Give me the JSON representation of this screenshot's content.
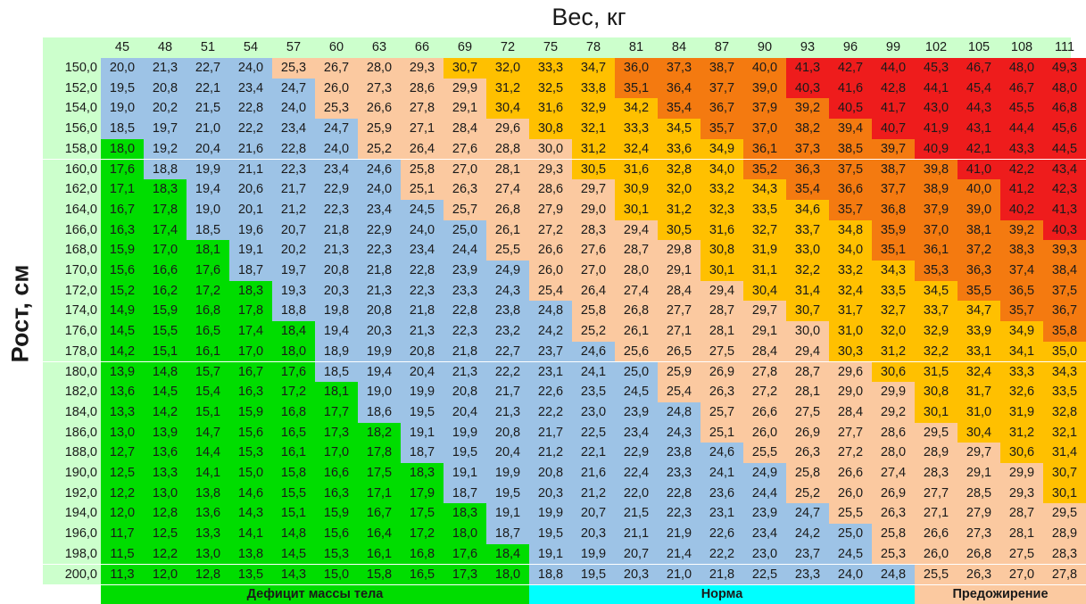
{
  "title": "Вес, кг",
  "row_axis_label": "Рост, см",
  "weights": [
    45,
    48,
    51,
    54,
    57,
    60,
    63,
    66,
    69,
    72,
    75,
    78,
    81,
    84,
    87,
    90,
    93,
    96,
    99,
    102,
    105,
    108,
    111
  ],
  "rows": [
    {
      "height": "150,0",
      "cells": [
        "20,0",
        "21,3",
        "22,7",
        "24,0",
        "25,3",
        "26,7",
        "28,0",
        "29,3",
        "30,7",
        "32,0",
        "33,3",
        "34,7",
        "36,0",
        "37,3",
        "38,7",
        "40,0",
        "41,3",
        "42,7",
        "44,0",
        "45,3",
        "46,7",
        "48,0",
        "49,3"
      ]
    },
    {
      "height": "152,0",
      "cells": [
        "19,5",
        "20,8",
        "22,1",
        "23,4",
        "24,7",
        "26,0",
        "27,3",
        "28,6",
        "29,9",
        "31,2",
        "32,5",
        "33,8",
        "35,1",
        "36,4",
        "37,7",
        "39,0",
        "40,3",
        "41,6",
        "42,8",
        "44,1",
        "45,4",
        "46,7",
        "48,0"
      ]
    },
    {
      "height": "154,0",
      "cells": [
        "19,0",
        "20,2",
        "21,5",
        "22,8",
        "24,0",
        "25,3",
        "26,6",
        "27,8",
        "29,1",
        "30,4",
        "31,6",
        "32,9",
        "34,2",
        "35,4",
        "36,7",
        "37,9",
        "39,2",
        "40,5",
        "41,7",
        "43,0",
        "44,3",
        "45,5",
        "46,8"
      ]
    },
    {
      "height": "156,0",
      "cells": [
        "18,5",
        "19,7",
        "21,0",
        "22,2",
        "23,4",
        "24,7",
        "25,9",
        "27,1",
        "28,4",
        "29,6",
        "30,8",
        "32,1",
        "33,3",
        "34,5",
        "35,7",
        "37,0",
        "38,2",
        "39,4",
        "40,7",
        "41,9",
        "43,1",
        "44,4",
        "45,6"
      ]
    },
    {
      "height": "158,0",
      "cells": [
        "18,0",
        "19,2",
        "20,4",
        "21,6",
        "22,8",
        "24,0",
        "25,2",
        "26,4",
        "27,6",
        "28,8",
        "30,0",
        "31,2",
        "32,4",
        "33,6",
        "34,9",
        "36,1",
        "37,3",
        "38,5",
        "39,7",
        "40,9",
        "42,1",
        "43,3",
        "44,5"
      ]
    },
    {
      "height": "160,0",
      "cells": [
        "17,6",
        "18,8",
        "19,9",
        "21,1",
        "22,3",
        "23,4",
        "24,6",
        "25,8",
        "27,0",
        "28,1",
        "29,3",
        "30,5",
        "31,6",
        "32,8",
        "34,0",
        "35,2",
        "36,3",
        "37,5",
        "38,7",
        "39,8",
        "41,0",
        "42,2",
        "43,4"
      ]
    },
    {
      "height": "162,0",
      "cells": [
        "17,1",
        "18,3",
        "19,4",
        "20,6",
        "21,7",
        "22,9",
        "24,0",
        "25,1",
        "26,3",
        "27,4",
        "28,6",
        "29,7",
        "30,9",
        "32,0",
        "33,2",
        "34,3",
        "35,4",
        "36,6",
        "37,7",
        "38,9",
        "40,0",
        "41,2",
        "42,3"
      ]
    },
    {
      "height": "164,0",
      "cells": [
        "16,7",
        "17,8",
        "19,0",
        "20,1",
        "21,2",
        "22,3",
        "23,4",
        "24,5",
        "25,7",
        "26,8",
        "27,9",
        "29,0",
        "30,1",
        "31,2",
        "32,3",
        "33,5",
        "34,6",
        "35,7",
        "36,8",
        "37,9",
        "39,0",
        "40,2",
        "41,3"
      ]
    },
    {
      "height": "166,0",
      "cells": [
        "16,3",
        "17,4",
        "18,5",
        "19,6",
        "20,7",
        "21,8",
        "22,9",
        "24,0",
        "25,0",
        "26,1",
        "27,2",
        "28,3",
        "29,4",
        "30,5",
        "31,6",
        "32,7",
        "33,7",
        "34,8",
        "35,9",
        "37,0",
        "38,1",
        "39,2",
        "40,3"
      ]
    },
    {
      "height": "168,0",
      "cells": [
        "15,9",
        "17,0",
        "18,1",
        "19,1",
        "20,2",
        "21,3",
        "22,3",
        "23,4",
        "24,4",
        "25,5",
        "26,6",
        "27,6",
        "28,7",
        "29,8",
        "30,8",
        "31,9",
        "33,0",
        "34,0",
        "35,1",
        "36,1",
        "37,2",
        "38,3",
        "39,3"
      ]
    },
    {
      "height": "170,0",
      "cells": [
        "15,6",
        "16,6",
        "17,6",
        "18,7",
        "19,7",
        "20,8",
        "21,8",
        "22,8",
        "23,9",
        "24,9",
        "26,0",
        "27,0",
        "28,0",
        "29,1",
        "30,1",
        "31,1",
        "32,2",
        "33,2",
        "34,3",
        "35,3",
        "36,3",
        "37,4",
        "38,4"
      ]
    },
    {
      "height": "172,0",
      "cells": [
        "15,2",
        "16,2",
        "17,2",
        "18,3",
        "19,3",
        "20,3",
        "21,3",
        "22,3",
        "23,3",
        "24,3",
        "25,4",
        "26,4",
        "27,4",
        "28,4",
        "29,4",
        "30,4",
        "31,4",
        "32,4",
        "33,5",
        "34,5",
        "35,5",
        "36,5",
        "37,5"
      ]
    },
    {
      "height": "174,0",
      "cells": [
        "14,9",
        "15,9",
        "16,8",
        "17,8",
        "18,8",
        "19,8",
        "20,8",
        "21,8",
        "22,8",
        "23,8",
        "24,8",
        "25,8",
        "26,8",
        "27,7",
        "28,7",
        "29,7",
        "30,7",
        "31,7",
        "32,7",
        "33,7",
        "34,7",
        "35,7",
        "36,7"
      ]
    },
    {
      "height": "176,0",
      "cells": [
        "14,5",
        "15,5",
        "16,5",
        "17,4",
        "18,4",
        "19,4",
        "20,3",
        "21,3",
        "22,3",
        "23,2",
        "24,2",
        "25,2",
        "26,1",
        "27,1",
        "28,1",
        "29,1",
        "30,0",
        "31,0",
        "32,0",
        "32,9",
        "33,9",
        "34,9",
        "35,8"
      ]
    },
    {
      "height": "178,0",
      "cells": [
        "14,2",
        "15,1",
        "16,1",
        "17,0",
        "18,0",
        "18,9",
        "19,9",
        "20,8",
        "21,8",
        "22,7",
        "23,7",
        "24,6",
        "25,6",
        "26,5",
        "27,5",
        "28,4",
        "29,4",
        "30,3",
        "31,2",
        "32,2",
        "33,1",
        "34,1",
        "35,0"
      ]
    },
    {
      "height": "180,0",
      "cells": [
        "13,9",
        "14,8",
        "15,7",
        "16,7",
        "17,6",
        "18,5",
        "19,4",
        "20,4",
        "21,3",
        "22,2",
        "23,1",
        "24,1",
        "25,0",
        "25,9",
        "26,9",
        "27,8",
        "28,7",
        "29,6",
        "30,6",
        "31,5",
        "32,4",
        "33,3",
        "34,3"
      ]
    },
    {
      "height": "182,0",
      "cells": [
        "13,6",
        "14,5",
        "15,4",
        "16,3",
        "17,2",
        "18,1",
        "19,0",
        "19,9",
        "20,8",
        "21,7",
        "22,6",
        "23,5",
        "24,5",
        "25,4",
        "26,3",
        "27,2",
        "28,1",
        "29,0",
        "29,9",
        "30,8",
        "31,7",
        "32,6",
        "33,5"
      ]
    },
    {
      "height": "184,0",
      "cells": [
        "13,3",
        "14,2",
        "15,1",
        "15,9",
        "16,8",
        "17,7",
        "18,6",
        "19,5",
        "20,4",
        "21,3",
        "22,2",
        "23,0",
        "23,9",
        "24,8",
        "25,7",
        "26,6",
        "27,5",
        "28,4",
        "29,2",
        "30,1",
        "31,0",
        "31,9",
        "32,8"
      ]
    },
    {
      "height": "186,0",
      "cells": [
        "13,0",
        "13,9",
        "14,7",
        "15,6",
        "16,5",
        "17,3",
        "18,2",
        "19,1",
        "19,9",
        "20,8",
        "21,7",
        "22,5",
        "23,4",
        "24,3",
        "25,1",
        "26,0",
        "26,9",
        "27,7",
        "28,6",
        "29,5",
        "30,4",
        "31,2",
        "32,1"
      ]
    },
    {
      "height": "188,0",
      "cells": [
        "12,7",
        "13,6",
        "14,4",
        "15,3",
        "16,1",
        "17,0",
        "17,8",
        "18,7",
        "19,5",
        "20,4",
        "21,2",
        "22,1",
        "22,9",
        "23,8",
        "24,6",
        "25,5",
        "26,3",
        "27,2",
        "28,0",
        "28,9",
        "29,7",
        "30,6",
        "31,4"
      ]
    },
    {
      "height": "190,0",
      "cells": [
        "12,5",
        "13,3",
        "14,1",
        "15,0",
        "15,8",
        "16,6",
        "17,5",
        "18,3",
        "19,1",
        "19,9",
        "20,8",
        "21,6",
        "22,4",
        "23,3",
        "24,1",
        "24,9",
        "25,8",
        "26,6",
        "27,4",
        "28,3",
        "29,1",
        "29,9",
        "30,7"
      ]
    },
    {
      "height": "192,0",
      "cells": [
        "12,2",
        "13,0",
        "13,8",
        "14,6",
        "15,5",
        "16,3",
        "17,1",
        "17,9",
        "18,7",
        "19,5",
        "20,3",
        "21,2",
        "22,0",
        "22,8",
        "23,6",
        "24,4",
        "25,2",
        "26,0",
        "26,9",
        "27,7",
        "28,5",
        "29,3",
        "30,1"
      ]
    },
    {
      "height": "194,0",
      "cells": [
        "12,0",
        "12,8",
        "13,6",
        "14,3",
        "15,1",
        "15,9",
        "16,7",
        "17,5",
        "18,3",
        "19,1",
        "19,9",
        "20,7",
        "21,5",
        "22,3",
        "23,1",
        "23,9",
        "24,7",
        "25,5",
        "26,3",
        "27,1",
        "27,9",
        "28,7",
        "29,5"
      ]
    },
    {
      "height": "196,0",
      "cells": [
        "11,7",
        "12,5",
        "13,3",
        "14,1",
        "14,8",
        "15,6",
        "16,4",
        "17,2",
        "18,0",
        "18,7",
        "19,5",
        "20,3",
        "21,1",
        "21,9",
        "22,6",
        "23,4",
        "24,2",
        "25,0",
        "25,8",
        "26,6",
        "27,3",
        "28,1",
        "28,9"
      ]
    },
    {
      "height": "198,0",
      "cells": [
        "11,5",
        "12,2",
        "13,0",
        "13,8",
        "14,5",
        "15,3",
        "16,1",
        "16,8",
        "17,6",
        "18,4",
        "19,1",
        "19,9",
        "20,7",
        "21,4",
        "22,2",
        "23,0",
        "23,7",
        "24,5",
        "25,3",
        "26,0",
        "26,8",
        "27,5",
        "28,3"
      ]
    },
    {
      "height": "200,0",
      "cells": [
        "11,3",
        "12,0",
        "12,8",
        "13,5",
        "14,3",
        "15,0",
        "15,8",
        "16,5",
        "17,3",
        "18,0",
        "18,8",
        "19,5",
        "20,3",
        "21,0",
        "21,8",
        "22,5",
        "23,3",
        "24,0",
        "24,8",
        "25,5",
        "26,3",
        "27,0",
        "27,8"
      ]
    }
  ],
  "legend": [
    {
      "label": "Дефицит массы тела",
      "color": "#00dd00"
    },
    {
      "label": "Норма",
      "color": "#00ffff"
    },
    {
      "label": "Предожирение",
      "color": "#fbc9a0"
    }
  ],
  "palette": [
    "#00dd00",
    "#9dc3e6",
    "#fbc9a0",
    "#ffc000",
    "#f47a10",
    "#ee1c1c"
  ],
  "header_color": "#ccffcc"
}
